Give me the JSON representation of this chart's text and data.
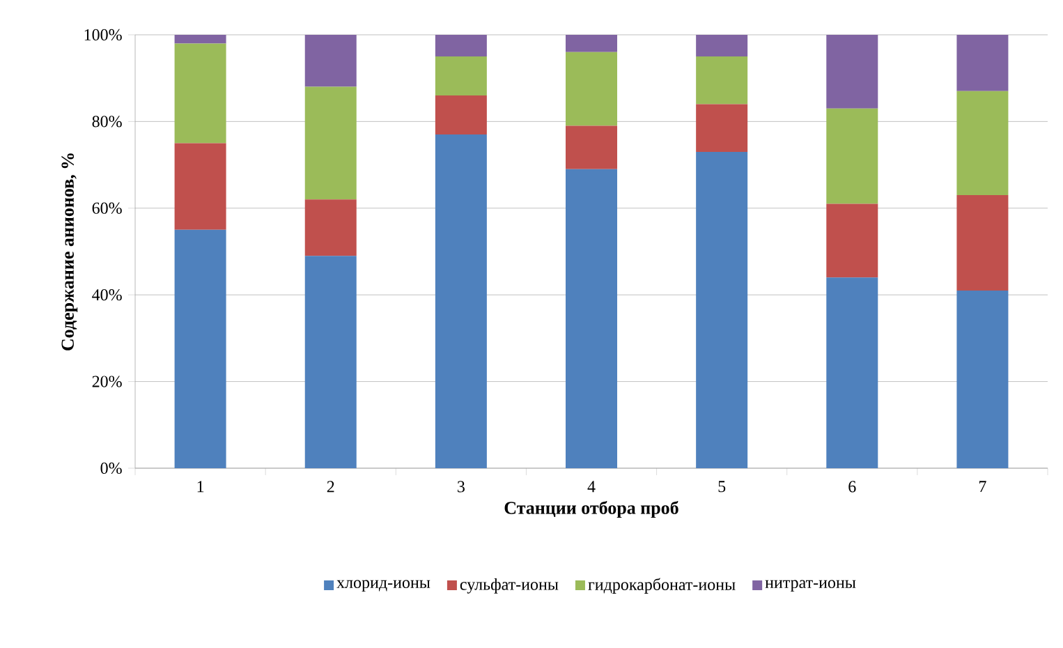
{
  "chart_data": {
    "type": "bar",
    "stacked": true,
    "xlabel": "Станции отбора проб",
    "ylabel": "Содержание анионов, %",
    "categories": [
      "1",
      "2",
      "3",
      "4",
      "5",
      "6",
      "7"
    ],
    "series": [
      {
        "name": "хлорид-ионы",
        "color": "#4f81bd",
        "values": [
          55,
          49,
          77,
          69,
          73,
          44,
          41
        ]
      },
      {
        "name": "сульфат-ионы",
        "color": "#c0504d",
        "values": [
          20,
          13,
          9,
          10,
          11,
          17,
          22
        ]
      },
      {
        "name": "гидрокарбонат-ионы",
        "color": "#9bbb59",
        "values": [
          23,
          26,
          9,
          17,
          11,
          22,
          24
        ]
      },
      {
        "name": "нитрат-ионы",
        "color": "#8064a2",
        "values": [
          2,
          12,
          5,
          4,
          5,
          17,
          13
        ]
      }
    ],
    "ylim": [
      0,
      100
    ],
    "yticks": [
      {
        "value": 0,
        "label": "0%"
      },
      {
        "value": 20,
        "label": "20%"
      },
      {
        "value": 40,
        "label": "40%"
      },
      {
        "value": 60,
        "label": "60%"
      },
      {
        "value": 80,
        "label": "80%"
      },
      {
        "value": 100,
        "label": "100%"
      }
    ],
    "grid": "y",
    "legend": "bottom"
  }
}
